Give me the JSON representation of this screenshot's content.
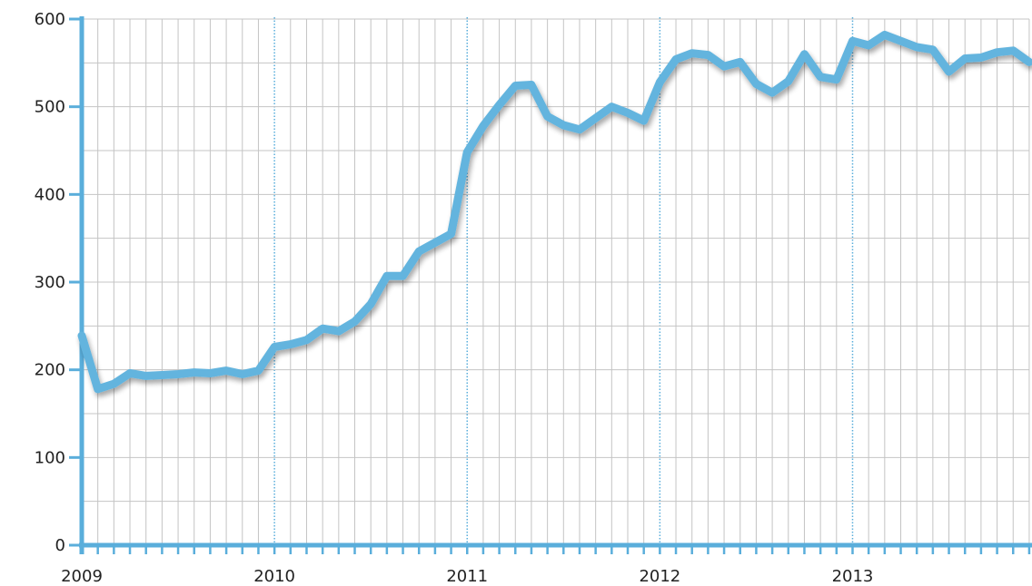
{
  "chart_data": {
    "type": "line",
    "title": "",
    "xlabel": "",
    "ylabel": "",
    "ylim": [
      0,
      600
    ],
    "yticks": [
      0,
      100,
      200,
      300,
      400,
      500,
      600
    ],
    "xlim": [
      2009,
      2013.917
    ],
    "xticks": [
      {
        "value": 2009,
        "label": "2009"
      },
      {
        "value": 2010,
        "label": "2010"
      },
      {
        "value": 2011,
        "label": "2011"
      },
      {
        "value": 2012,
        "label": "2012"
      },
      {
        "value": 2013,
        "label": "2013"
      }
    ],
    "grid": true,
    "x_period": "monthly",
    "x_start": "2009-01",
    "colors": {
      "line": "#63b4de",
      "axis": "#5aaedb",
      "grid": "#c4c4c4",
      "year_grid": "#5aaedb"
    },
    "series": [
      {
        "values": [
          239,
          178,
          184,
          196,
          193,
          194,
          195,
          197,
          196,
          199,
          195,
          199,
          226,
          229,
          234,
          247,
          244,
          255,
          275,
          307,
          307,
          335,
          345,
          355,
          448,
          478,
          502,
          524,
          525,
          489,
          479,
          474,
          487,
          500,
          493,
          484,
          528,
          554,
          561,
          559,
          546,
          551,
          526,
          516,
          529,
          560,
          534,
          531,
          575,
          570,
          582,
          575,
          568,
          565,
          540,
          555,
          556,
          562,
          564,
          551
        ]
      }
    ]
  }
}
